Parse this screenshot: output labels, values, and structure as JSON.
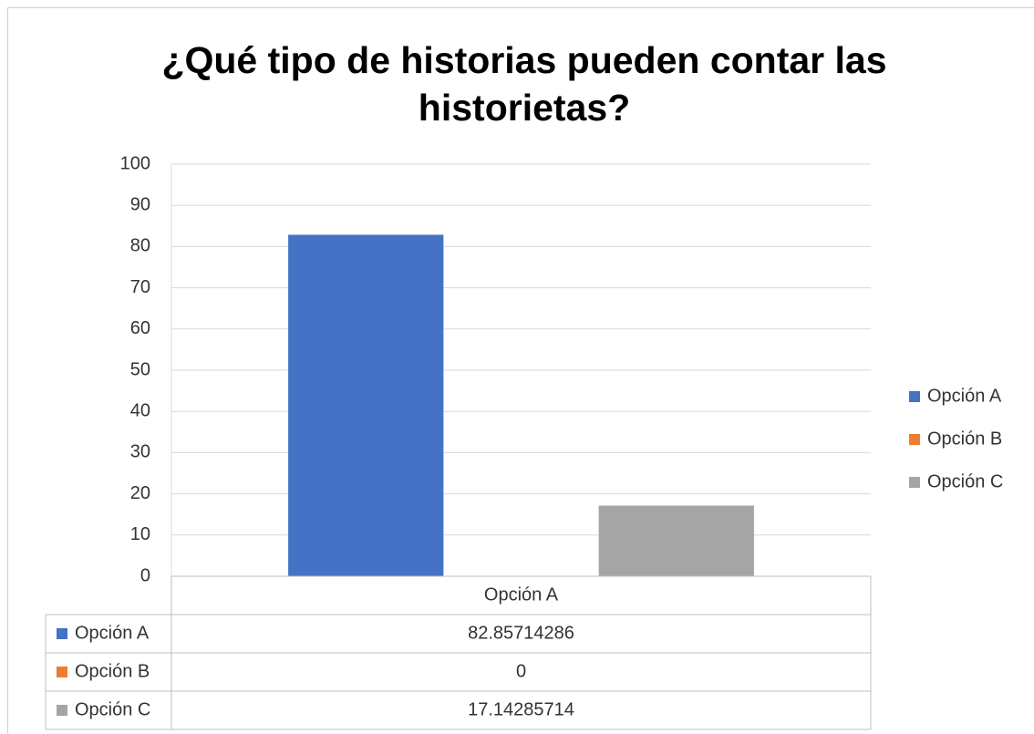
{
  "chart_data": {
    "type": "bar",
    "title": "¿Qué tipo de historias pueden contar las historietas?",
    "categories": [
      "Opción A"
    ],
    "series": [
      {
        "name": "Opción A",
        "color": "#4472c4",
        "values": [
          82.85714286
        ]
      },
      {
        "name": "Opción B",
        "color": "#ed7d31",
        "values": [
          0
        ]
      },
      {
        "name": "Opción C",
        "color": "#a5a5a5",
        "values": [
          17.14285714
        ]
      }
    ],
    "ylim": [
      0,
      100
    ],
    "yticks": [
      0,
      10,
      20,
      30,
      40,
      50,
      60,
      70,
      80,
      90,
      100
    ],
    "grid": true,
    "legend": "right",
    "data_table": true
  }
}
